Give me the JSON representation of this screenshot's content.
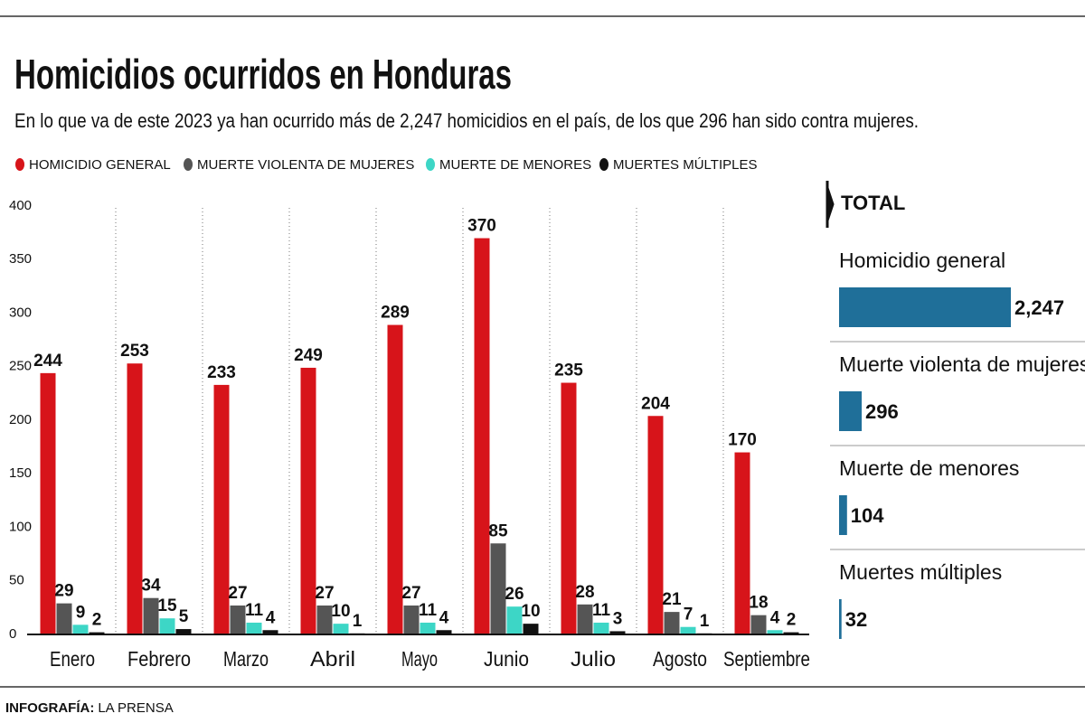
{
  "chart_data": [
    {
      "type": "bar",
      "title": "Homicidios ocurridos en Honduras",
      "subtitle": "En lo que va de este 2023 ya han ocurrido más de 2,247 homicidios en el país, de los que 296 han sido contra mujeres.",
      "source_label": "INFOGRAFÍA:",
      "source": "LA PRENSA",
      "categories": [
        "Enero",
        "Febrero",
        "Marzo",
        "Abril",
        "Mayo",
        "Junio",
        "Julio",
        "Agosto",
        "Septiembre"
      ],
      "series": [
        {
          "name": "HOMICIDIO GENERAL",
          "color": "#d7141a",
          "values": [
            244,
            253,
            233,
            249,
            289,
            370,
            235,
            204,
            170
          ]
        },
        {
          "name": "MUERTE VIOLENTA DE MUJERES",
          "color": "#555555",
          "values": [
            29,
            34,
            27,
            27,
            27,
            85,
            28,
            21,
            18
          ]
        },
        {
          "name": "MUERTE DE MENORES",
          "color": "#3dd6c6",
          "values": [
            9,
            15,
            11,
            10,
            11,
            26,
            11,
            7,
            4
          ]
        },
        {
          "name": "MUERTES MÚLTIPLES",
          "color": "#111111",
          "values": [
            2,
            5,
            4,
            1,
            4,
            10,
            3,
            1,
            2
          ]
        }
      ],
      "ylim": [
        0,
        400
      ],
      "yticks": [
        0,
        50,
        100,
        150,
        200,
        250,
        300,
        350,
        400
      ]
    },
    {
      "type": "barh",
      "title": "TOTAL",
      "categories": [
        "Homicidio general",
        "Muerte violenta de mujeres",
        "Muerte de menores",
        "Muertes múltiples"
      ],
      "values": [
        2247,
        296,
        104,
        32
      ],
      "value_labels": [
        "2,247",
        "296",
        "104",
        "32"
      ],
      "color": "#1f6f99"
    }
  ]
}
